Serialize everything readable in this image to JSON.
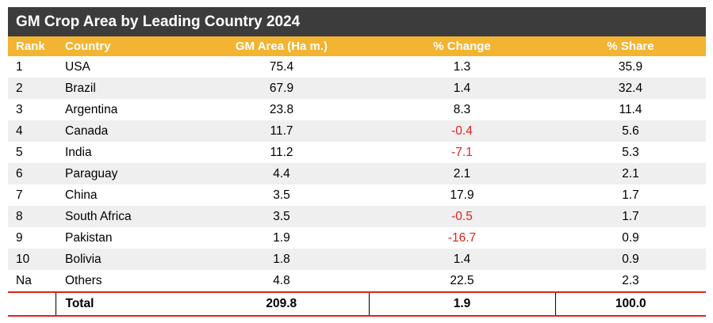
{
  "chart_data": {
    "type": "table",
    "title": "GM Crop Area by Leading Country 2024",
    "columns": [
      "Rank",
      "Country",
      "GM Area (Ha m.)",
      "% Change",
      "% Share"
    ],
    "rows": [
      {
        "rank": "1",
        "country": "USA",
        "area": "75.4",
        "change": "1.3",
        "share": "35.9",
        "negative": false
      },
      {
        "rank": "2",
        "country": "Brazil",
        "area": "67.9",
        "change": "1.4",
        "share": "32.4",
        "negative": false
      },
      {
        "rank": "3",
        "country": "Argentina",
        "area": "23.8",
        "change": "8.3",
        "share": "11.4",
        "negative": false
      },
      {
        "rank": "4",
        "country": "Canada",
        "area": "11.7",
        "change": "-0.4",
        "share": "5.6",
        "negative": true
      },
      {
        "rank": "5",
        "country": "India",
        "area": "11.2",
        "change": "-7.1",
        "share": "5.3",
        "negative": true
      },
      {
        "rank": "6",
        "country": "Paraguay",
        "area": "4.4",
        "change": "2.1",
        "share": "2.1",
        "negative": false
      },
      {
        "rank": "7",
        "country": "China",
        "area": "3.5",
        "change": "17.9",
        "share": "1.7",
        "negative": false
      },
      {
        "rank": "8",
        "country": "South Africa",
        "area": "3.5",
        "change": "-0.5",
        "share": "1.7",
        "negative": true
      },
      {
        "rank": "9",
        "country": "Pakistan",
        "area": "1.9",
        "change": "-16.7",
        "share": "0.9",
        "negative": true
      },
      {
        "rank": "10",
        "country": "Bolivia",
        "area": "1.8",
        "change": "1.4",
        "share": "0.9",
        "negative": false
      },
      {
        "rank": "Na",
        "country": "Others",
        "area": "4.8",
        "change": "22.5",
        "share": "2.3",
        "negative": false
      }
    ],
    "total": {
      "label": "Total",
      "area": "209.8",
      "change": "1.9",
      "share": "100.0"
    }
  },
  "colors": {
    "title_bg": "#3c3c3c",
    "header_bg": "#f2b431",
    "stripe_bg": "#efefef",
    "negative_text": "#e3201b",
    "total_rule": "#e3201b"
  }
}
